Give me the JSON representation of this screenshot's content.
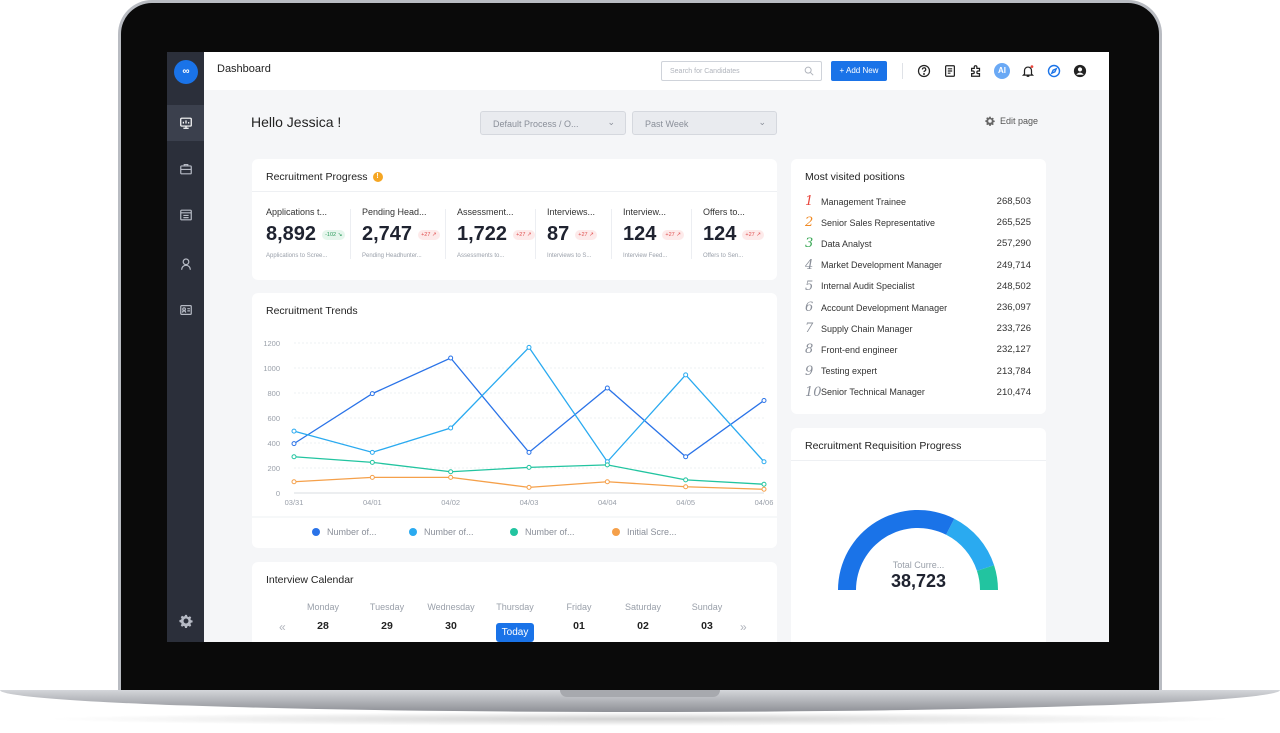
{
  "topbar": {
    "crumb": "Dashboard",
    "search_placeholder": "Search for Candidates",
    "add_new": "+ Add New",
    "ai_label": "AI"
  },
  "header": {
    "greeting": "Hello Jessica !",
    "process_select": "Default Process / O...",
    "period_select": "Past Week",
    "edit_page": "Edit page"
  },
  "progress": {
    "title": "Recruitment Progress",
    "metrics": [
      {
        "label": "Applications t...",
        "value": "8,892",
        "delta": "-102 ↘",
        "trend": "down",
        "sub": "Applications to Scree..."
      },
      {
        "label": "Pending Head...",
        "value": "2,747",
        "delta": "+27 ↗",
        "trend": "up",
        "sub": "Pending Headhunter..."
      },
      {
        "label": "Assessment...",
        "value": "1,722",
        "delta": "+27 ↗",
        "trend": "up",
        "sub": "Assessments to..."
      },
      {
        "label": "Interviews...",
        "value": "87",
        "delta": "+27 ↗",
        "trend": "up",
        "sub": "Interviews to S..."
      },
      {
        "label": "Interview...",
        "value": "124",
        "delta": "+27 ↗",
        "trend": "up",
        "sub": "Interview Feed..."
      },
      {
        "label": "Offers to...",
        "value": "124",
        "delta": "+27 ↗",
        "trend": "up",
        "sub": "Offers to Sen..."
      }
    ]
  },
  "trends": {
    "title": "Recruitment Trends",
    "chart_data": {
      "type": "line",
      "x": [
        "03/31",
        "04/01",
        "04/02",
        "04/03",
        "04/04",
        "04/05",
        "04/06"
      ],
      "ylim": [
        0,
        1200
      ],
      "yticks": [
        "0",
        "200",
        "400",
        "600",
        "800",
        "1000",
        "1200"
      ],
      "grid": true,
      "legend": "bottom",
      "series": [
        {
          "name": "Number of...",
          "color": "#2a73e8",
          "values": [
            395,
            795,
            1080,
            325,
            840,
            290,
            740
          ]
        },
        {
          "name": "Number of...",
          "color": "#2aaaf0",
          "values": [
            495,
            325,
            520,
            1165,
            250,
            945,
            250
          ]
        },
        {
          "name": "Number of...",
          "color": "#22c4a0",
          "values": [
            290,
            245,
            170,
            205,
            225,
            105,
            70
          ]
        },
        {
          "name": "Initial Scre...",
          "color": "#f5a04a",
          "values": [
            90,
            125,
            125,
            45,
            90,
            50,
            30
          ]
        }
      ]
    }
  },
  "calendar": {
    "title": "Interview Calendar",
    "days": [
      {
        "name": "Monday",
        "date": "28"
      },
      {
        "name": "Tuesday",
        "date": "29"
      },
      {
        "name": "Wednesday",
        "date": "30"
      },
      {
        "name": "Thursday",
        "date": "Today"
      },
      {
        "name": "Friday",
        "date": "01"
      },
      {
        "name": "Saturday",
        "date": "02"
      },
      {
        "name": "Sunday",
        "date": "03"
      }
    ],
    "prev": "«",
    "next": "»"
  },
  "positions": {
    "title": "Most visited positions",
    "items": [
      {
        "rank": "1",
        "name": "Management Trainee",
        "count": "268,503",
        "color": "#e8453c"
      },
      {
        "rank": "2",
        "name": "Senior Sales Representative",
        "count": "265,525",
        "color": "#f08a24"
      },
      {
        "rank": "3",
        "name": "Data Analyst",
        "count": "257,290",
        "color": "#3aa856"
      },
      {
        "rank": "4",
        "name": "Market Development Manager",
        "count": "249,714",
        "color": "#8a8f99"
      },
      {
        "rank": "5",
        "name": "Internal Audit Specialist",
        "count": "248,502",
        "color": "#8a8f99"
      },
      {
        "rank": "6",
        "name": "Account Development Manager",
        "count": "236,097",
        "color": "#8a8f99"
      },
      {
        "rank": "7",
        "name": "Supply Chain Manager",
        "count": "233,726",
        "color": "#8a8f99"
      },
      {
        "rank": "8",
        "name": "Front-end engineer",
        "count": "232,127",
        "color": "#8a8f99"
      },
      {
        "rank": "9",
        "name": "Testing expert",
        "count": "213,784",
        "color": "#8a8f99"
      },
      {
        "rank": "10",
        "name": "Senior Technical Manager",
        "count": "210,474",
        "color": "#8a8f99"
      }
    ]
  },
  "requisition": {
    "title": "Recruitment Requisition Progress",
    "gauge_label": "Total Curre...",
    "gauge_value": "38,723",
    "gauge_segments": [
      {
        "fraction": 0.65,
        "color": "#1a73e8"
      },
      {
        "fraction": 0.25,
        "color": "#2aaaf0"
      },
      {
        "fraction": 0.1,
        "color": "#22c4a0"
      }
    ]
  }
}
